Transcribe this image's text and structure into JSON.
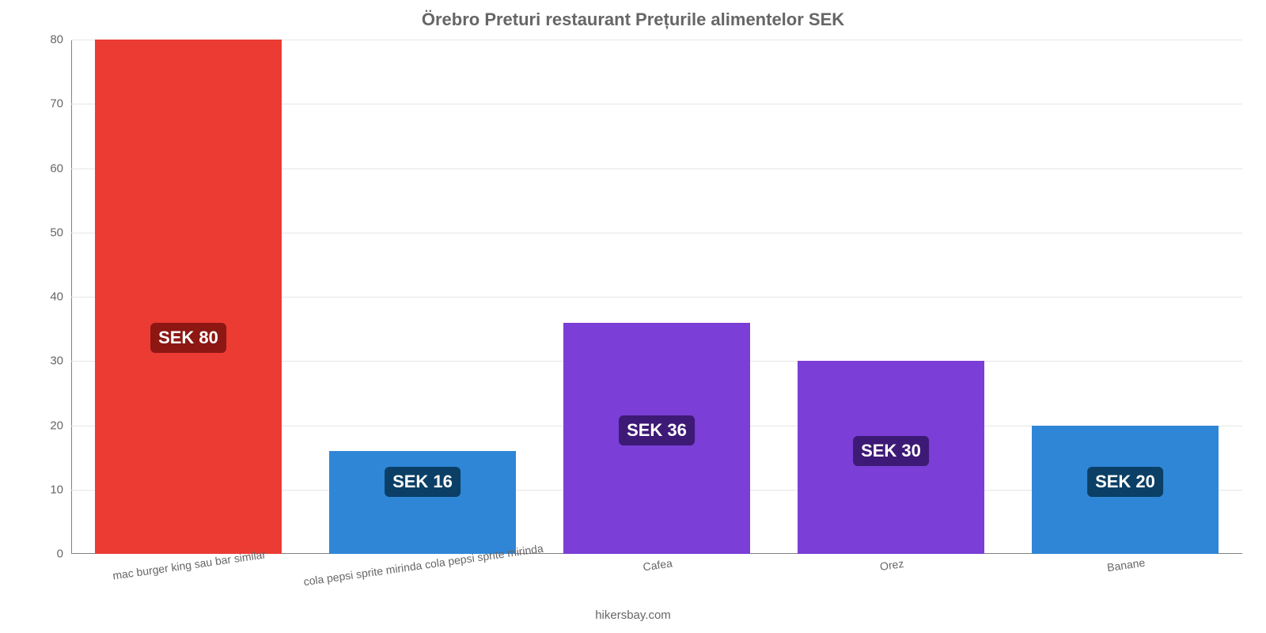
{
  "chart": {
    "type": "bar",
    "title": "Örebro Preturi restaurant Prețurile alimentelor SEK",
    "title_color": "#666666",
    "title_fontsize": 22,
    "background_color": "#ffffff",
    "grid_color": "#e6e6e6",
    "axis_color": "#808080",
    "label_color": "#666666",
    "tick_fontsize": 15,
    "xlabel_fontsize": 14,
    "ylim": [
      0,
      80
    ],
    "yticks": [
      0,
      10,
      20,
      30,
      40,
      50,
      60,
      70,
      80
    ],
    "bar_width_pct": 80,
    "categories": [
      "mac burger king sau bar similar",
      "cola pepsi sprite mirinda cola pepsi sprite mirinda",
      "Cafea",
      "Orez",
      "Banane"
    ],
    "values": [
      80,
      16,
      36,
      30,
      20
    ],
    "value_labels": [
      "SEK 80",
      "SEK 16",
      "SEK 36",
      "SEK 30",
      "SEK 20"
    ],
    "bar_colors": [
      "#ec3b33",
      "#2f86d6",
      "#7b3ed6",
      "#7b3ed6",
      "#2f86d6"
    ],
    "badge_colors": [
      "#8c1713",
      "#0b3f66",
      "#3d1a75",
      "#3d1a75",
      "#0b3f66"
    ],
    "badge_text_color": "#ffffff",
    "badge_fontsize": 22,
    "badge_offsets_pct": [
      45,
      17,
      27,
      23,
      17
    ],
    "attribution": "hikersbay.com"
  }
}
